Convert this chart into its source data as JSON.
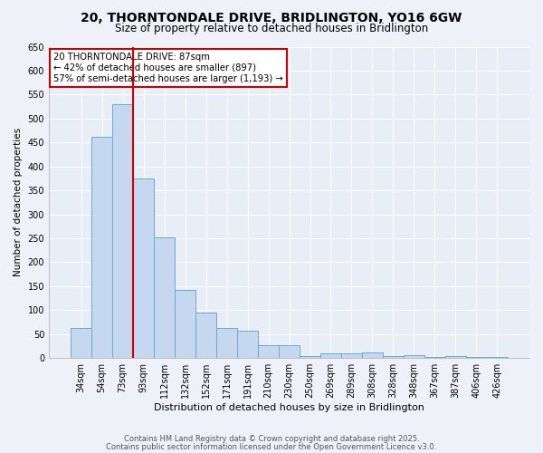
{
  "title1": "20, THORNTONDALE DRIVE, BRIDLINGTON, YO16 6GW",
  "title2": "Size of property relative to detached houses in Bridlington",
  "xlabel": "Distribution of detached houses by size in Bridlington",
  "ylabel": "Number of detached properties",
  "bar_labels": [
    "34sqm",
    "54sqm",
    "73sqm",
    "93sqm",
    "112sqm",
    "132sqm",
    "152sqm",
    "171sqm",
    "191sqm",
    "210sqm",
    "230sqm",
    "250sqm",
    "269sqm",
    "289sqm",
    "308sqm",
    "328sqm",
    "348sqm",
    "367sqm",
    "387sqm",
    "406sqm",
    "426sqm"
  ],
  "bar_values": [
    63,
    462,
    530,
    375,
    252,
    143,
    95,
    63,
    57,
    27,
    27,
    5,
    10,
    10,
    12,
    5,
    7,
    3,
    5,
    2,
    3
  ],
  "bar_color": "#c5d8ef",
  "bar_edge_color": "#6aaad4",
  "vline_color": "#cc0000",
  "annotation_title": "20 THORNTONDALE DRIVE: 87sqm",
  "annotation_line1": "← 42% of detached houses are smaller (897)",
  "annotation_line2": "57% of semi-detached houses are larger (1,193) →",
  "annotation_box_facecolor": "white",
  "annotation_box_edgecolor": "#cc0000",
  "ylim": [
    0,
    650
  ],
  "yticks": [
    0,
    50,
    100,
    150,
    200,
    250,
    300,
    350,
    400,
    450,
    500,
    550,
    600,
    650
  ],
  "footnote1": "Contains HM Land Registry data © Crown copyright and database right 2025.",
  "footnote2": "Contains public sector information licensed under the Open Government Licence v3.0.",
  "bg_color": "#eef2f8",
  "plot_bg_color": "#e8eef6",
  "grid_color": "#ffffff",
  "title1_fontsize": 10,
  "title2_fontsize": 8.5,
  "xlabel_fontsize": 8,
  "ylabel_fontsize": 7.5,
  "tick_fontsize": 7,
  "annot_fontsize": 7.2,
  "footnote_fontsize": 6
}
